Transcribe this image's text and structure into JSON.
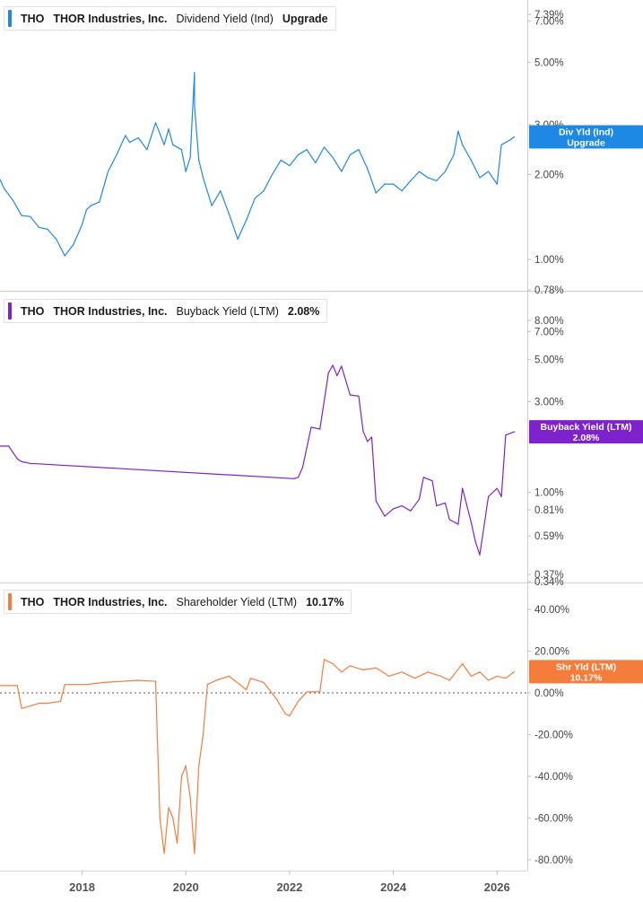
{
  "chart_data": [
    {
      "type": "line",
      "ticker": "THO",
      "company": "THOR Industries, Inc.",
      "metric": "Dividend Yield (Ind)",
      "legend_value": "Upgrade",
      "color": "#1e88e5",
      "scale": "log",
      "ylim": [
        0.78,
        7.39
      ],
      "y_ticks": [
        {
          "value": 7.39,
          "label": "7.39%"
        },
        {
          "value": 7.0,
          "label": "7.00%"
        },
        {
          "value": 5.0,
          "label": "5.00%"
        },
        {
          "value": 3.0,
          "label": "3.00%"
        },
        {
          "value": 2.0,
          "label": "2.00%"
        },
        {
          "value": 1.0,
          "label": "1.00%"
        },
        {
          "value": 0.78,
          "label": "0.78%"
        }
      ],
      "tag": {
        "value": 2.72,
        "line1": "Div Yld (Ind)",
        "line2": "Upgrade"
      },
      "series": [
        {
          "x": [
            "2016-06",
            "2016-07",
            "2016-09",
            "2016-11",
            "2017-01",
            "2017-03",
            "2017-05",
            "2017-07",
            "2017-09",
            "2017-11",
            "2018-01",
            "2018-02",
            "2018-03",
            "2018-05",
            "2018-07",
            "2018-09",
            "2018-11",
            "2018-12",
            "2019-02",
            "2019-04",
            "2019-06",
            "2019-08",
            "2019-09",
            "2019-10",
            "2019-12",
            "2020-01",
            "2020-02",
            "2020-03",
            "2020-03",
            "2020-04",
            "2020-05",
            "2020-07",
            "2020-09",
            "2020-11",
            "2021-01",
            "2021-03",
            "2021-05",
            "2021-07",
            "2021-09",
            "2021-11",
            "2022-01",
            "2022-03",
            "2022-05",
            "2022-07",
            "2022-09",
            "2022-11",
            "2023-01",
            "2023-03",
            "2023-05",
            "2023-07",
            "2023-09",
            "2023-11",
            "2024-01",
            "2024-03",
            "2024-05",
            "2024-07",
            "2024-09",
            "2024-11",
            "2025-01",
            "2025-03",
            "2025-04",
            "2025-05",
            "2025-07",
            "2025-09",
            "2025-11",
            "2026-01",
            "2026-02",
            "2026-04",
            "2026-05"
          ],
          "y": [
            1.92,
            1.78,
            1.62,
            1.43,
            1.42,
            1.3,
            1.28,
            1.18,
            1.03,
            1.13,
            1.33,
            1.5,
            1.55,
            1.6,
            2.05,
            2.35,
            2.75,
            2.6,
            2.7,
            2.45,
            3.05,
            2.55,
            2.9,
            2.55,
            2.45,
            2.05,
            2.3,
            4.6,
            3.5,
            2.25,
            1.95,
            1.55,
            1.75,
            1.45,
            1.18,
            1.38,
            1.65,
            1.75,
            2.0,
            2.25,
            2.15,
            2.35,
            2.45,
            2.2,
            2.5,
            2.3,
            2.05,
            2.35,
            2.45,
            2.1,
            1.72,
            1.85,
            1.85,
            1.75,
            1.9,
            2.05,
            1.95,
            1.9,
            2.05,
            2.35,
            2.85,
            2.55,
            2.25,
            1.95,
            2.05,
            1.85,
            2.55,
            2.65,
            2.72
          ]
        }
      ]
    },
    {
      "type": "line",
      "ticker": "THO",
      "company": "THOR Industries, Inc.",
      "metric": "Buyback Yield (LTM)",
      "legend_value": "2.08%",
      "color": "#7e22ce",
      "scale": "log",
      "ylim": [
        0.34,
        8.0
      ],
      "y_ticks": [
        {
          "value": 8.0,
          "label": "8.00%"
        },
        {
          "value": 7.0,
          "label": "7.00%"
        },
        {
          "value": 5.0,
          "label": "5.00%"
        },
        {
          "value": 3.0,
          "label": "3.00%"
        },
        {
          "value": 1.0,
          "label": "1.00%"
        },
        {
          "value": 0.81,
          "label": "0.81%"
        },
        {
          "value": 0.59,
          "label": "0.59%"
        },
        {
          "value": 0.37,
          "label": "0.37%"
        },
        {
          "value": 0.34,
          "label": "0.34%"
        }
      ],
      "tag": {
        "value": 2.08,
        "line1": "Buyback Yield (LTM)",
        "line2": "2.08%"
      },
      "series": [
        {
          "x": [
            "2016-06",
            "2016-08",
            "2016-10",
            "2016-11",
            "2017-01",
            "2022-02",
            "2022-03",
            "2022-04",
            "2022-06",
            "2022-08",
            "2022-10",
            "2022-11",
            "2022-12",
            "2023-01",
            "2023-03",
            "2023-05",
            "2023-06",
            "2023-07",
            "2023-08",
            "2023-09",
            "2023-11",
            "2024-01",
            "2024-03",
            "2024-05",
            "2024-07",
            "2024-08",
            "2024-10",
            "2024-11",
            "2025-01",
            "2025-02",
            "2025-04",
            "2025-05",
            "2025-07",
            "2025-08",
            "2025-09",
            "2025-11",
            "2026-01",
            "2026-02",
            "2026-03",
            "2026-05"
          ],
          "y": [
            1.75,
            1.75,
            1.5,
            1.45,
            1.42,
            1.18,
            1.2,
            1.35,
            2.2,
            2.15,
            4.25,
            4.65,
            4.1,
            4.6,
            3.25,
            3.2,
            2.1,
            1.85,
            1.95,
            0.9,
            0.75,
            0.82,
            0.85,
            0.8,
            0.92,
            1.2,
            1.15,
            0.85,
            0.88,
            0.72,
            0.68,
            1.05,
            0.7,
            0.55,
            0.47,
            0.95,
            1.05,
            0.95,
            2.0,
            2.08
          ]
        }
      ]
    },
    {
      "type": "line",
      "ticker": "THO",
      "company": "THOR Industries, Inc.",
      "metric": "Shareholder Yield (LTM)",
      "legend_value": "10.17%",
      "color": "#f57c3b",
      "scale": "linear",
      "ylim": [
        -80,
        40
      ],
      "zero_line": true,
      "y_ticks": [
        {
          "value": 40,
          "label": "40.00%"
        },
        {
          "value": 20,
          "label": "20.00%"
        },
        {
          "value": 0,
          "label": "0.00%"
        },
        {
          "value": -20,
          "label": "-20.00%"
        },
        {
          "value": -40,
          "label": "-40.00%"
        },
        {
          "value": -60,
          "label": "-60.00%"
        },
        {
          "value": -80,
          "label": "-80.00%"
        }
      ],
      "tag": {
        "value": 10.17,
        "line1": "Shr Yld (LTM)",
        "line2": "10.17%"
      },
      "series": [
        {
          "x": [
            "2016-06",
            "2016-10",
            "2016-11",
            "2017-03",
            "2017-05",
            "2017-08",
            "2017-09",
            "2018-02",
            "2018-06",
            "2018-10",
            "2019-02",
            "2019-06",
            "2019-07",
            "2019-07",
            "2019-08",
            "2019-09",
            "2019-10",
            "2019-11",
            "2019-12",
            "2020-01",
            "2020-02",
            "2020-03",
            "2020-04",
            "2020-05",
            "2020-06",
            "2020-08",
            "2020-11",
            "2021-03",
            "2021-04",
            "2021-07",
            "2021-10",
            "2021-12",
            "2022-01",
            "2022-03",
            "2022-05",
            "2022-08",
            "2022-09",
            "2022-11",
            "2023-01",
            "2023-03",
            "2023-06",
            "2023-09",
            "2023-12",
            "2024-03",
            "2024-06",
            "2024-09",
            "2024-12",
            "2025-02",
            "2025-05",
            "2025-07",
            "2025-09",
            "2025-11",
            "2026-01",
            "2026-03",
            "2026-05"
          ],
          "y": [
            3.5,
            3.5,
            -7.5,
            -5,
            -5,
            -4,
            4,
            4,
            5,
            5.5,
            6,
            5.5,
            -60,
            -60,
            -77,
            -55,
            -60,
            -72,
            -40,
            -35,
            -50,
            -77,
            -35,
            -20,
            4,
            6,
            8,
            1.5,
            7,
            5,
            -3,
            -10,
            -11,
            -4,
            0.5,
            0.5,
            16,
            14,
            10,
            13,
            11,
            12,
            8,
            10,
            7,
            10,
            8,
            6,
            14,
            8,
            10,
            6,
            8,
            7,
            10.17
          ]
        }
      ]
    }
  ],
  "x_axis": {
    "range": [
      "2016-06",
      "2026-08"
    ],
    "ticks": [
      {
        "value": "2018-01",
        "label": "2018"
      },
      {
        "value": "2020-01",
        "label": "2020"
      },
      {
        "value": "2022-01",
        "label": "2022"
      },
      {
        "value": "2024-01",
        "label": "2024"
      },
      {
        "value": "2026-01",
        "label": "2026"
      }
    ]
  }
}
